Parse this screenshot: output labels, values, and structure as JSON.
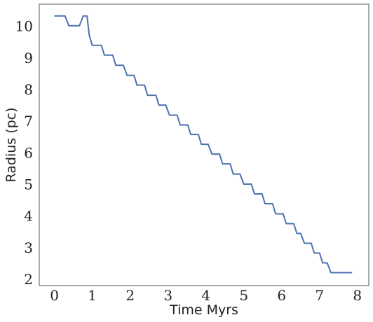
{
  "chart_data": {
    "type": "line",
    "title": "",
    "xlabel": "Time Myrs",
    "ylabel": "Radius (pc)",
    "xlim": [
      -0.4,
      8.3
    ],
    "ylim": [
      1.8,
      10.7
    ],
    "xticks": [
      0,
      1,
      2,
      3,
      4,
      5,
      6,
      7,
      8
    ],
    "yticks": [
      2,
      3,
      4,
      5,
      6,
      7,
      8,
      9,
      10
    ],
    "grid": false,
    "legend": "none",
    "series": [
      {
        "color": "#4c72b0",
        "x": [
          0.0,
          0.28,
          0.38,
          0.66,
          0.76,
          0.86,
          0.92,
          1.0,
          1.24,
          1.32,
          1.54,
          1.62,
          1.82,
          1.92,
          2.1,
          2.18,
          2.38,
          2.46,
          2.68,
          2.76,
          2.94,
          3.04,
          3.24,
          3.32,
          3.52,
          3.6,
          3.8,
          3.88,
          4.06,
          4.16,
          4.36,
          4.44,
          4.64,
          4.72,
          4.9,
          5.0,
          5.2,
          5.28,
          5.48,
          5.56,
          5.76,
          5.84,
          6.04,
          6.12,
          6.32,
          6.4,
          6.5,
          6.6,
          6.78,
          6.86,
          7.0,
          7.08,
          7.2,
          7.3,
          7.46,
          7.54,
          7.86
        ],
        "y": [
          10.33,
          10.33,
          10.02,
          10.02,
          10.33,
          10.33,
          9.72,
          9.4,
          9.4,
          9.09,
          9.09,
          8.77,
          8.77,
          8.45,
          8.45,
          8.14,
          8.14,
          7.82,
          7.82,
          7.51,
          7.51,
          7.19,
          7.19,
          6.88,
          6.88,
          6.58,
          6.58,
          6.27,
          6.27,
          5.96,
          5.96,
          5.65,
          5.65,
          5.33,
          5.33,
          5.01,
          5.01,
          4.7,
          4.7,
          4.39,
          4.39,
          4.07,
          4.07,
          3.76,
          3.76,
          3.45,
          3.45,
          3.14,
          3.14,
          2.83,
          2.83,
          2.52,
          2.52,
          2.21,
          2.21,
          2.21,
          2.21
        ]
      }
    ]
  }
}
